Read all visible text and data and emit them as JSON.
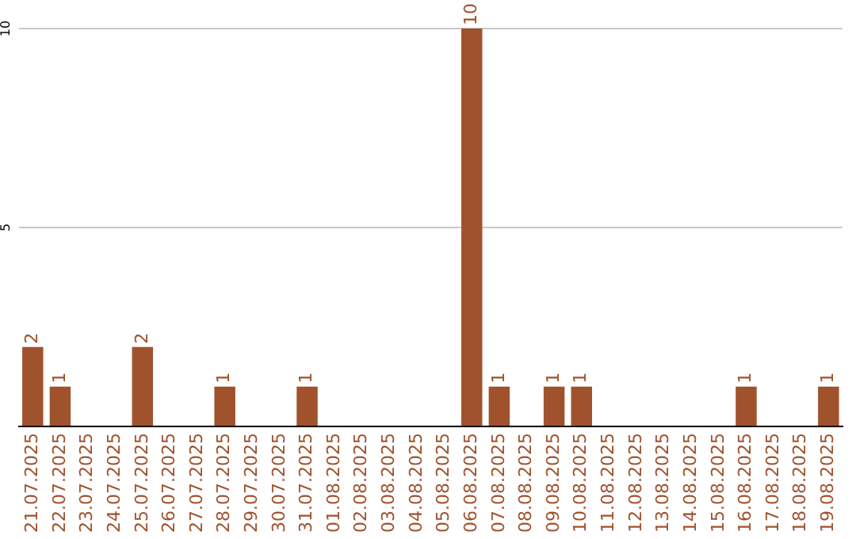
{
  "chart_data": {
    "type": "bar",
    "categories": [
      "21.07.2025",
      "22.07.2025",
      "23.07.2025",
      "24.07.2025",
      "25.07.2025",
      "26.07.2025",
      "27.07.2025",
      "28.07.2025",
      "29.07.2025",
      "30.07.2025",
      "31.07.2025",
      "01.08.2025",
      "02.08.2025",
      "03.08.2025",
      "04.08.2025",
      "05.08.2025",
      "06.08.2025",
      "07.08.2025",
      "08.08.2025",
      "09.08.2025",
      "10.08.2025",
      "11.08.2025",
      "12.08.2025",
      "13.08.2025",
      "14.08.2025",
      "15.08.2025",
      "16.08.2025",
      "17.08.2025",
      "18.08.2025",
      "19.08.2025"
    ],
    "values": [
      2,
      1,
      0,
      0,
      2,
      0,
      0,
      1,
      0,
      0,
      1,
      0,
      0,
      0,
      0,
      0,
      10,
      1,
      0,
      1,
      1,
      0,
      0,
      0,
      0,
      0,
      1,
      0,
      0,
      1
    ],
    "value_labels": [
      "2",
      "1",
      null,
      null,
      "2",
      null,
      null,
      "1",
      null,
      null,
      "1",
      null,
      null,
      null,
      null,
      null,
      "10",
      "1",
      null,
      "1",
      "1",
      null,
      null,
      null,
      null,
      null,
      "1",
      null,
      null,
      "1"
    ],
    "color": "#a0522d",
    "ylim": [
      0,
      10
    ],
    "yticks": [
      {
        "value": 0,
        "label": null
      },
      5,
      10
    ],
    "grid": "y"
  }
}
